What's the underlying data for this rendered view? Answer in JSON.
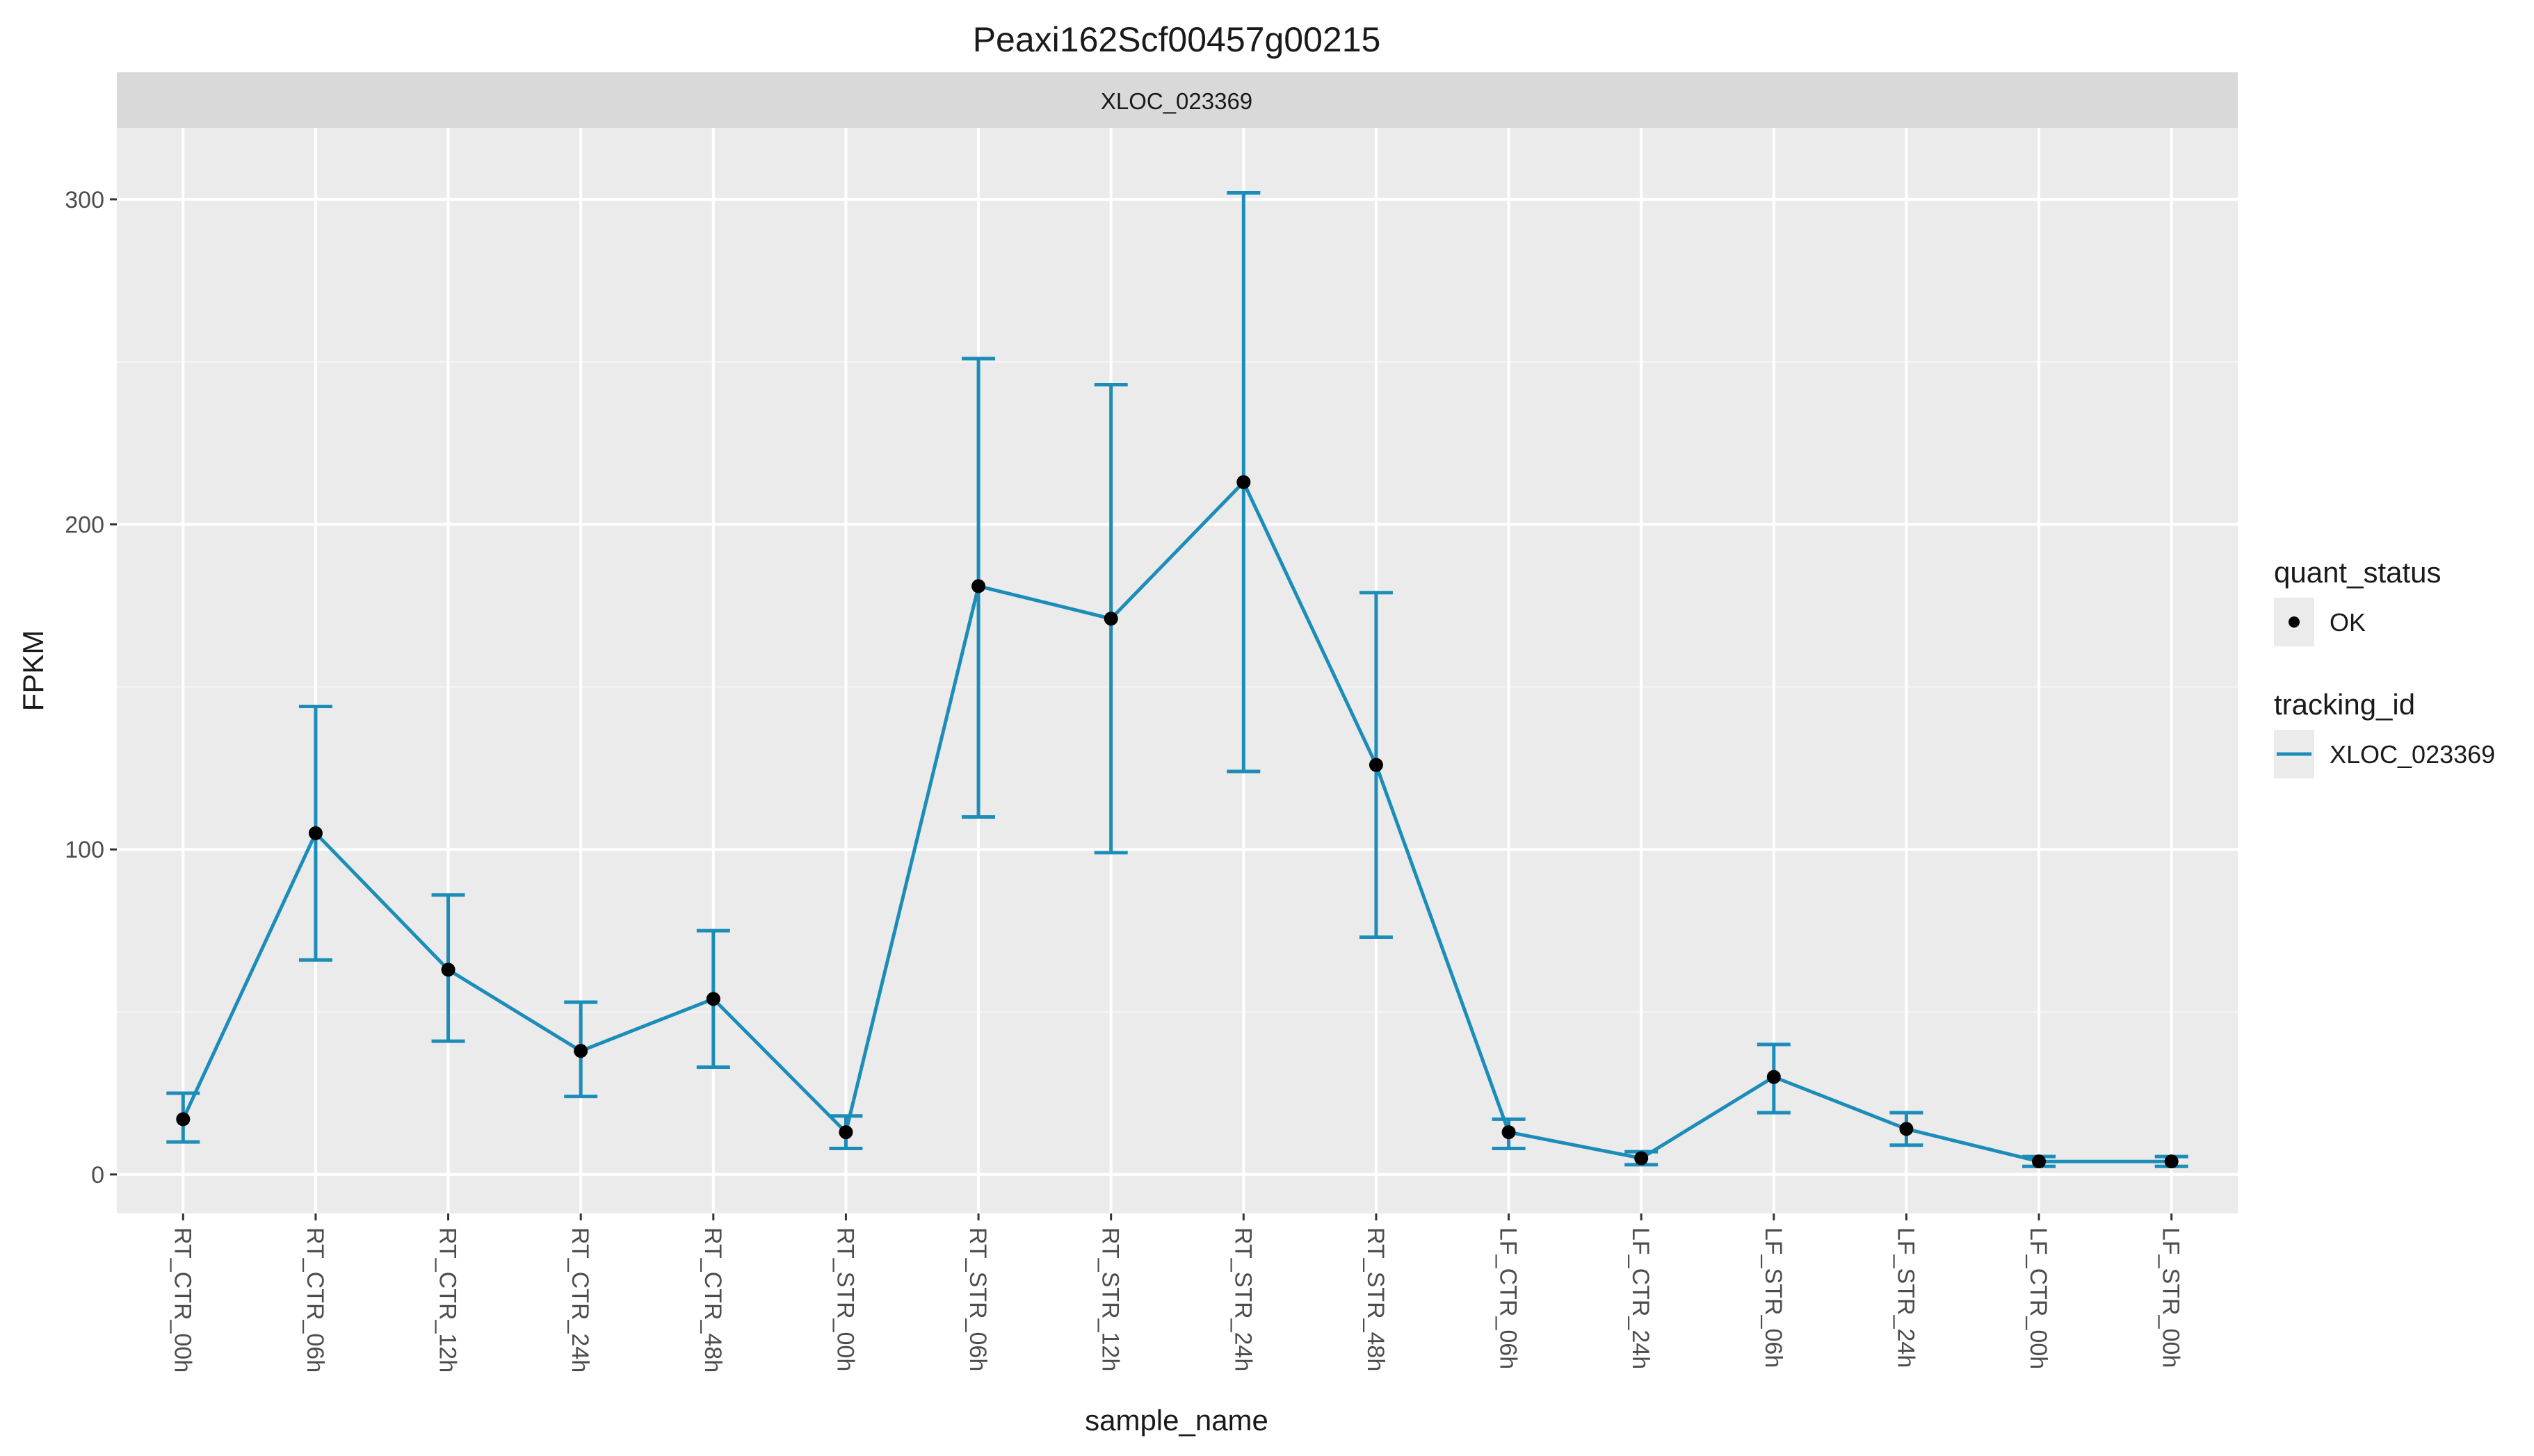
{
  "chart_data": {
    "type": "line",
    "title": "Peaxi162Scf00457g00215",
    "facet_label": "XLOC_023369",
    "xlabel": "sample_name",
    "ylabel": "FPKM",
    "ylim": [
      -12,
      322
    ],
    "y_ticks": [
      0,
      100,
      200,
      300
    ],
    "y_tick_labels": [
      "0",
      "100",
      "200",
      "300"
    ],
    "grid": true,
    "categories": [
      "RT_CTR_00h",
      "RT_CTR_06h",
      "RT_CTR_12h",
      "RT_CTR_24h",
      "RT_CTR_48h",
      "RT_STR_00h",
      "RT_STR_06h",
      "RT_STR_12h",
      "RT_STR_24h",
      "RT_STR_48h",
      "LF_CTR_06h",
      "LF_CTR_24h",
      "LF_STR_06h",
      "LF_STR_24h",
      "LF_CTR_00h",
      "LF_STR_00h"
    ],
    "series": [
      {
        "name": "XLOC_023369",
        "color": "#1b8db8",
        "values": [
          17,
          105,
          63,
          38,
          54,
          13,
          181,
          171,
          213,
          126,
          13,
          5,
          30,
          14,
          4,
          4
        ],
        "error_low": [
          10,
          66,
          41,
          24,
          33,
          8,
          110,
          99,
          124,
          73,
          8,
          3,
          19,
          9,
          2.5,
          2.5
        ],
        "error_high": [
          25,
          144,
          86,
          53,
          75,
          18,
          251,
          243,
          302,
          179,
          17,
          7,
          40,
          19,
          5.5,
          5.5
        ],
        "point_color": "#000000"
      }
    ],
    "legend": {
      "placement": "right",
      "groups": [
        {
          "title": "quant_status",
          "items": [
            {
              "label": "OK",
              "symbol": "point",
              "color": "#000000"
            }
          ]
        },
        {
          "title": "tracking_id",
          "items": [
            {
              "label": "XLOC_023369",
              "symbol": "line",
              "color": "#1b8db8"
            }
          ]
        }
      ]
    },
    "colors": {
      "panel_bg": "#ebebeb",
      "strip_bg": "#d9d9d9",
      "grid_major": "#ffffff",
      "grid_minor": "#f5f5f5"
    }
  }
}
